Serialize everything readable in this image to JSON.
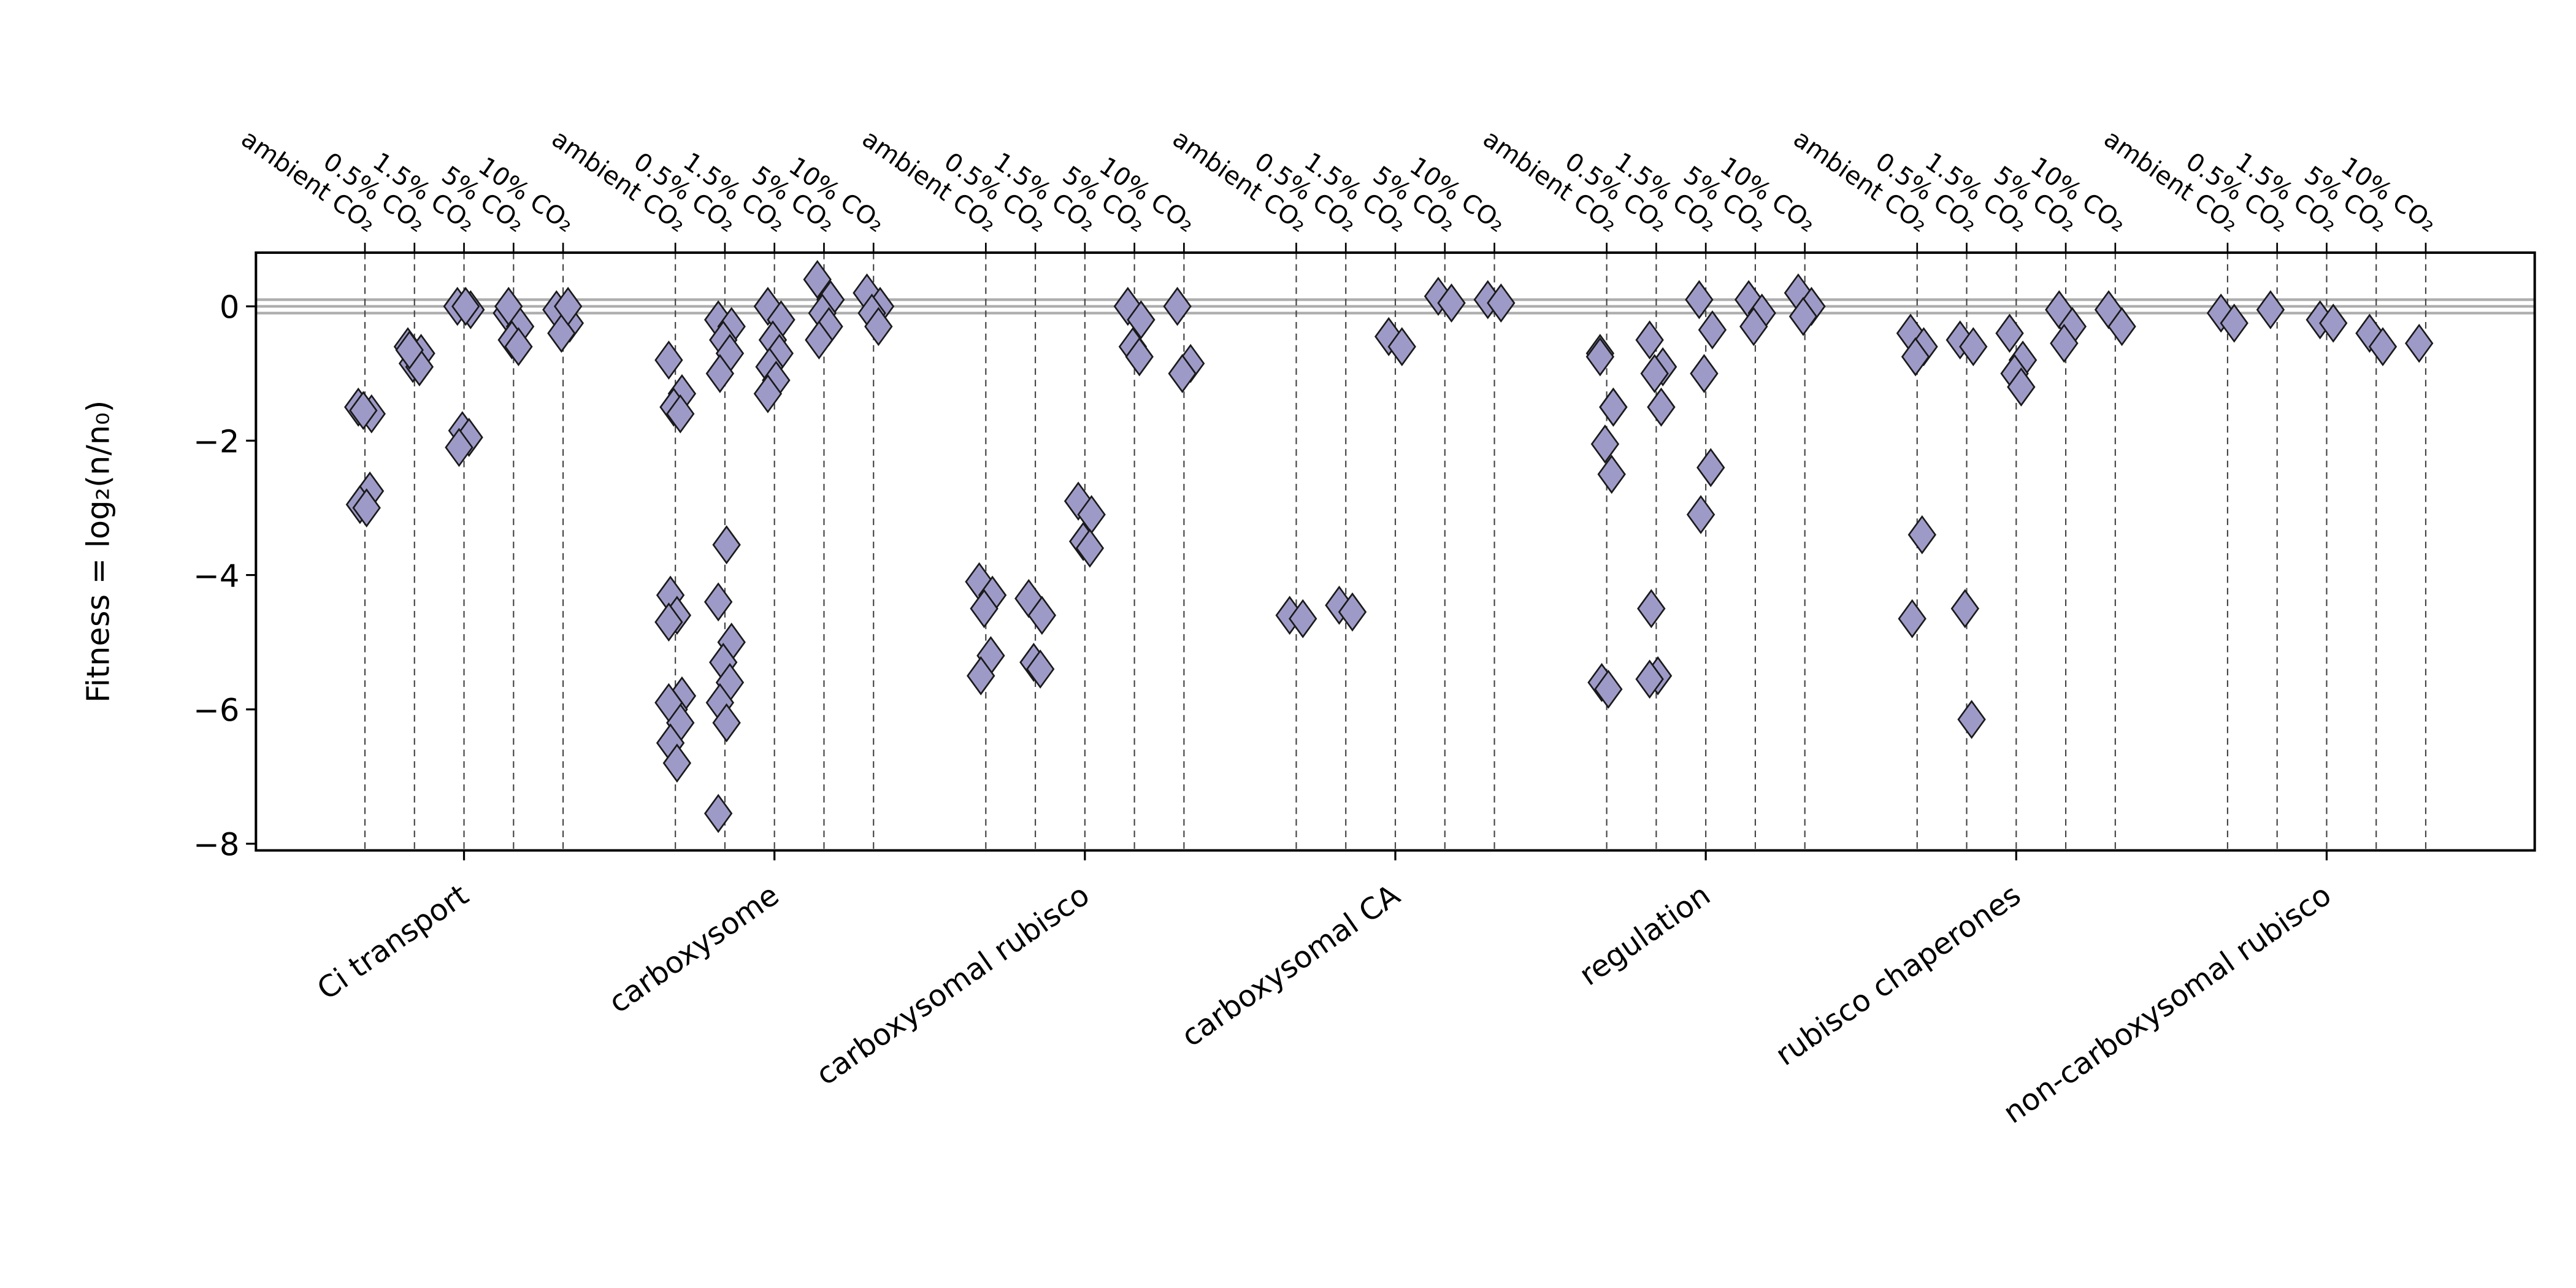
{
  "chart_data": {
    "type": "strip",
    "ylabel": "Fitness = log₂(n/n₀)",
    "categories": [
      "Ci transport",
      "carboxysome",
      "carboxysomal rubisco",
      "carboxysomal CA",
      "regulation",
      "rubisco chaperones",
      "non-carboxysomal rubisco"
    ],
    "conditions": [
      "ambient CO₂",
      "0.5% CO₂",
      "1.5% CO₂",
      "5% CO₂",
      "10% CO₂"
    ],
    "color": "#9e9ac8",
    "edgecolor": "#1a1a1a",
    "ylim": [
      -8.1,
      0.8
    ],
    "yticks": [
      {
        "value": -8,
        "label": "−8"
      },
      {
        "value": -6,
        "label": "−6"
      },
      {
        "value": -4,
        "label": "−4"
      },
      {
        "value": -2,
        "label": "−2"
      },
      0
    ],
    "hlines": [
      -0.1,
      0,
      0.1
    ],
    "values": [
      [
        [
          -1.5,
          -1.6,
          -1.55,
          -2.75,
          -2.95,
          -3.0
        ],
        [
          -0.6,
          -0.7,
          -0.85,
          -0.9,
          -0.65
        ],
        [
          0,
          -0.05,
          -1.85,
          -1.95,
          -2.1,
          0.0
        ],
        [
          -0.1,
          -0.3,
          -0.5,
          -0.6,
          0.0
        ],
        [
          -0.05,
          -0.25,
          -0.4,
          0.0
        ]
      ],
      [
        [
          -0.8,
          -1.3,
          -1.5,
          -1.6,
          -4.3,
          -4.6,
          -4.7,
          -5.8,
          -6.0,
          -6.2,
          -6.5,
          -6.8,
          -5.9
        ],
        [
          -0.2,
          -0.3,
          -0.5,
          -0.7,
          -1.0,
          -3.55,
          -4.4,
          -5.0,
          -5.3,
          -5.6,
          -5.9,
          -6.2,
          -7.55
        ],
        [
          0,
          -0.2,
          -0.5,
          -0.7,
          -0.9,
          -1.1,
          -1.3
        ],
        [
          0.4,
          0.1,
          -0.1,
          -0.3,
          -0.5
        ],
        [
          0.2,
          0.0,
          -0.1,
          -0.3
        ]
      ],
      [
        [
          -4.1,
          -4.3,
          -4.5,
          -5.2,
          -5.5
        ],
        [
          -4.35,
          -4.6,
          -5.3,
          -5.4
        ],
        [
          -2.9,
          -3.1,
          -3.5,
          -3.6
        ],
        [
          0,
          -0.2,
          -0.6,
          -0.75
        ],
        [
          0,
          -0.85,
          -1.0
        ]
      ],
      [
        [
          -4.6,
          -4.65
        ],
        [
          -4.45,
          -4.55
        ],
        [
          -0.45,
          -0.6
        ],
        [
          0.15,
          0.05
        ],
        [
          0.1,
          0.05
        ]
      ],
      [
        [
          -0.7,
          -1.5,
          -2.05,
          -2.5,
          -5.6,
          -5.7,
          -0.75,
          -1.5
        ],
        [
          -0.5,
          -0.9,
          -1.0,
          -1.5,
          -4.5,
          -5.5,
          -5.55
        ],
        [
          0.1,
          -0.35,
          -1.0,
          -2.4,
          -3.1
        ],
        [
          0.1,
          -0.1,
          -0.3
        ],
        [
          0.2,
          0.0,
          -0.15
        ]
      ],
      [
        [
          -0.4,
          -0.6,
          -0.75,
          -3.4,
          -4.65
        ],
        [
          -0.5,
          -0.6,
          -4.5,
          -6.15
        ],
        [
          -0.4,
          -0.8,
          -1.0,
          -1.2
        ],
        [
          -0.05,
          -0.3,
          -0.55
        ],
        [
          -0.05,
          -0.3
        ]
      ],
      [
        [
          -0.1,
          -0.25
        ],
        [
          -0.05
        ],
        [
          -0.2,
          -0.25
        ],
        [
          -0.4,
          -0.6
        ],
        [
          -0.55
        ]
      ]
    ]
  }
}
